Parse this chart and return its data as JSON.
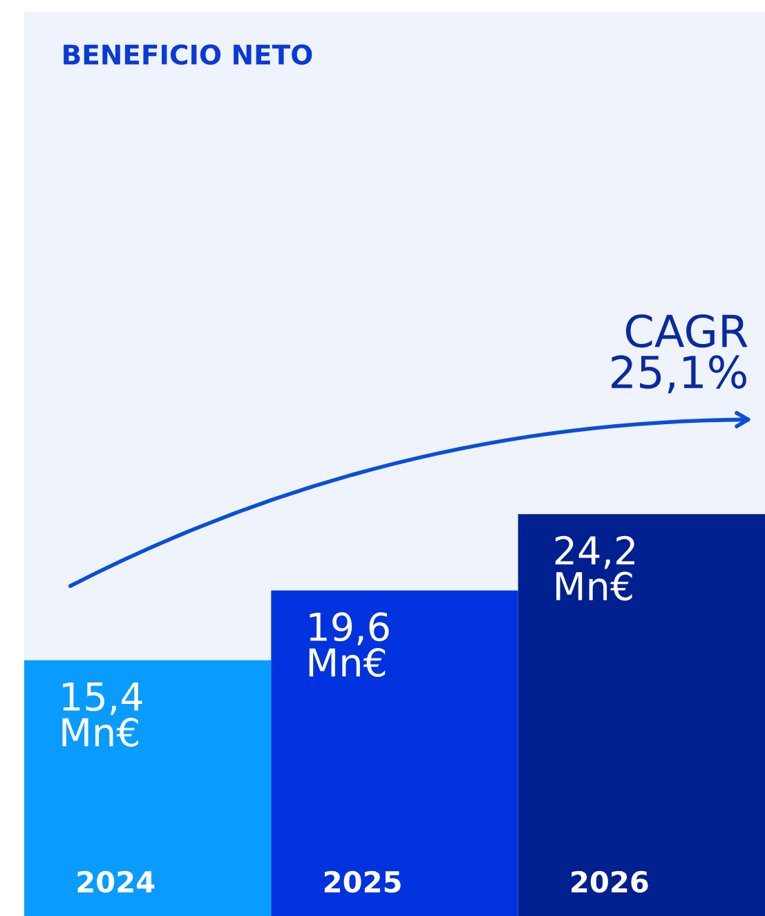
{
  "chart_data": {
    "type": "bar",
    "title": "BENEFICIO NETO",
    "categories": [
      "2024",
      "2025",
      "2026"
    ],
    "values": [
      15.4,
      19.6,
      24.2
    ],
    "colors": [
      "#0a9bff",
      "#0033dd",
      "#00208f"
    ],
    "value_labels": [
      "15,4\nMn€",
      "19,6\nMn€",
      "24,2\nMn€"
    ],
    "annotations": [
      "CAGR\n25,1%"
    ]
  }
}
